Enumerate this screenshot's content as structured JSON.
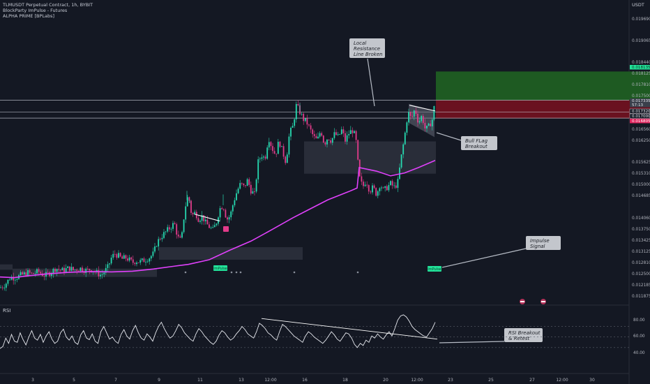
{
  "header": {
    "symbol": "TLMUSDT Perpetual Contract, 1h, BYBIT",
    "indicator_1": "BlockParty ImPulse - Futures",
    "indicator_2": "ALPHA PRIME [BPLabs]",
    "currency": "USDT"
  },
  "rsi_label": "RSI",
  "colors": {
    "background": "#141823",
    "bull_candle": "#26d9b0",
    "bear_candle": "#e23b8a",
    "ma_line": "#e040fb",
    "take_profit_zone": "#1e5a22",
    "stop_zone": "#6a1220",
    "pill_green": "#22e39a",
    "pill_red": "#e0245e",
    "pill_dark": "#3a3f4b"
  },
  "annotations": [
    {
      "id": "resistance",
      "lines": [
        "Local",
        "Resistance",
        "Line Broken"
      ]
    },
    {
      "id": "bullflag",
      "lines": [
        "Bull FLag",
        "Breakout"
      ]
    },
    {
      "id": "impulse",
      "lines": [
        "Impulse",
        "Signal"
      ]
    },
    {
      "id": "rsi",
      "lines": [
        "RSI Breakout",
        "& Retest"
      ]
    }
  ],
  "impulse_label": "ImPulse",
  "rsi_axis_labels": [
    "80.00",
    "60.00",
    "40.00"
  ],
  "chart_data": [
    {
      "type": "candlestick",
      "title": "TLMUSDT Perpetual Contract, 1h, BYBIT",
      "y_tick_labels": [
        "0.019690",
        "0.019065",
        "0.018440",
        "0.018125",
        "0.017810",
        "0.017500",
        "0.016560",
        "0.016250",
        "0.015625",
        "0.015310",
        "0.015000",
        "0.014685",
        "0.014060",
        "0.013750",
        "0.013425",
        "0.013125",
        "0.012810",
        "0.012500",
        "0.012185",
        "0.011875"
      ],
      "price_pills": [
        {
          "label": "0.018135",
          "style": "green"
        },
        {
          "label": "0.017335",
          "style": "dark"
        },
        {
          "label": "57:13",
          "style": "dark"
        },
        {
          "label": "0.017320",
          "style": "outline"
        },
        {
          "label": "0.017000",
          "style": "outline"
        },
        {
          "label": "0.016805",
          "style": "red"
        }
      ],
      "x_tick_labels": [
        "3",
        "5",
        "7",
        "9",
        "11",
        "13",
        "12:00",
        "16",
        "18",
        "20",
        "12:00",
        "23",
        "25",
        "27",
        "12:00",
        "30"
      ],
      "close_path": [
        [
          0,
          0.0121
        ],
        [
          5,
          0.01215
        ],
        [
          10,
          0.01225
        ],
        [
          15,
          0.0124
        ],
        [
          20,
          0.01238
        ],
        [
          25,
          0.0124
        ],
        [
          30,
          0.01245
        ],
        [
          35,
          0.01248
        ],
        [
          40,
          0.01252
        ],
        [
          45,
          0.01248
        ],
        [
          50,
          0.01251
        ],
        [
          55,
          0.01255
        ],
        [
          60,
          0.01248
        ],
        [
          65,
          0.01244
        ],
        [
          70,
          0.0125
        ],
        [
          75,
          0.01256
        ],
        [
          80,
          0.01265
        ],
        [
          85,
          0.0126
        ],
        [
          90,
          0.01258
        ],
        [
          95,
          0.01262
        ],
        [
          100,
          0.01265
        ],
        [
          105,
          0.01259
        ],
        [
          110,
          0.01262
        ],
        [
          115,
          0.01264
        ],
        [
          120,
          0.0126
        ],
        [
          125,
          0.01258
        ],
        [
          130,
          0.01262
        ],
        [
          135,
          0.01256
        ],
        [
          140,
          0.0125
        ],
        [
          145,
          0.01245
        ],
        [
          150,
          0.01255
        ],
        [
          155,
          0.01268
        ],
        [
          160,
          0.01295
        ],
        [
          165,
          0.01305
        ],
        [
          170,
          0.01298
        ],
        [
          175,
          0.0129
        ],
        [
          180,
          0.01294
        ],
        [
          185,
          0.01288
        ],
        [
          190,
          0.0128
        ],
        [
          195,
          0.01285
        ],
        [
          200,
          0.01282
        ],
        [
          205,
          0.01285
        ],
        [
          210,
          0.0129
        ],
        [
          215,
          0.01295
        ],
        [
          220,
          0.01305
        ],
        [
          225,
          0.01335
        ],
        [
          230,
          0.0135
        ],
        [
          235,
          0.0136
        ],
        [
          240,
          0.0137
        ],
        [
          245,
          0.0138
        ],
        [
          250,
          0.0139
        ],
        [
          255,
          0.0135
        ],
        [
          260,
          0.0134
        ],
        [
          265,
          0.0143
        ],
        [
          270,
          0.0147
        ],
        [
          275,
          0.0141
        ],
        [
          280,
          0.0142
        ],
        [
          285,
          0.014
        ],
        [
          290,
          0.0141
        ],
        [
          295,
          0.0139
        ],
        [
          300,
          0.0138
        ],
        [
          305,
          0.0137
        ],
        [
          310,
          0.0139
        ],
        [
          315,
          0.0143
        ],
        [
          320,
          0.0144
        ],
        [
          325,
          0.014
        ],
        [
          330,
          0.0141
        ],
        [
          335,
          0.0145
        ],
        [
          340,
          0.0148
        ],
        [
          345,
          0.015
        ],
        [
          350,
          0.0149
        ],
        [
          355,
          0.0151
        ],
        [
          360,
          0.0148
        ],
        [
          365,
          0.0147
        ],
        [
          370,
          0.0156
        ],
        [
          375,
          0.0158
        ],
        [
          380,
          0.0157
        ],
        [
          385,
          0.0163
        ],
        [
          390,
          0.016
        ],
        [
          395,
          0.0158
        ],
        [
          400,
          0.0162
        ],
        [
          405,
          0.0159
        ],
        [
          410,
          0.0156
        ],
        [
          415,
          0.0164
        ],
        [
          420,
          0.0166
        ],
        [
          425,
          0.0172
        ],
        [
          430,
          0.017
        ],
        [
          435,
          0.0168
        ],
        [
          440,
          0.0167
        ],
        [
          445,
          0.0165
        ],
        [
          450,
          0.0163
        ],
        [
          455,
          0.0162
        ],
        [
          460,
          0.0165
        ],
        [
          465,
          0.0161
        ],
        [
          470,
          0.0163
        ],
        [
          475,
          0.0162
        ],
        [
          480,
          0.0164
        ],
        [
          485,
          0.0163
        ],
        [
          490,
          0.0165
        ],
        [
          495,
          0.0162
        ],
        [
          500,
          0.0164
        ],
        [
          505,
          0.0165
        ],
        [
          510,
          0.0163
        ],
        [
          515,
          0.0152
        ],
        [
          520,
          0.0149
        ],
        [
          525,
          0.0151
        ],
        [
          530,
          0.0148
        ],
        [
          535,
          0.0149
        ],
        [
          540,
          0.0147
        ],
        [
          545,
          0.015
        ],
        [
          550,
          0.0148
        ],
        [
          555,
          0.0149
        ],
        [
          560,
          0.015
        ],
        [
          565,
          0.0149
        ],
        [
          570,
          0.015
        ],
        [
          575,
          0.0157
        ],
        [
          580,
          0.0163
        ],
        [
          585,
          0.017
        ],
        [
          590,
          0.0168
        ],
        [
          595,
          0.0171
        ],
        [
          600,
          0.0167
        ],
        [
          605,
          0.0169
        ],
        [
          610,
          0.0165
        ],
        [
          615,
          0.0166
        ],
        [
          620,
          0.0168
        ],
        [
          624,
          0.01733
        ]
      ],
      "moving_average": [
        [
          0,
          0.0124
        ],
        [
          20,
          0.01238
        ],
        [
          40,
          0.01243
        ],
        [
          70,
          0.01249
        ],
        [
          100,
          0.01253
        ],
        [
          130,
          0.01255
        ],
        [
          160,
          0.01254
        ],
        [
          190,
          0.01256
        ],
        [
          220,
          0.01262
        ],
        [
          250,
          0.0127
        ],
        [
          270,
          0.01275
        ],
        [
          300,
          0.01288
        ],
        [
          330,
          0.01315
        ],
        [
          360,
          0.0134
        ],
        [
          390,
          0.01372
        ],
        [
          420,
          0.01405
        ],
        [
          440,
          0.01425
        ],
        [
          470,
          0.01455
        ],
        [
          500,
          0.01478
        ],
        [
          512,
          0.01488
        ],
        [
          515,
          0.01545
        ],
        [
          540,
          0.01535
        ],
        [
          560,
          0.01522
        ],
        [
          580,
          0.0153
        ],
        [
          600,
          0.01545
        ],
        [
          624,
          0.01565
        ]
      ],
      "zones": [
        {
          "kind": "base",
          "x0": 0,
          "x1": 18,
          "top": 0.01275,
          "bottom": 0.0126
        },
        {
          "kind": "demand",
          "x0": 18,
          "x1": 225,
          "top": 0.01263,
          "bottom": 0.0124
        },
        {
          "kind": "demand",
          "x0": 228,
          "x1": 434,
          "top": 0.01323,
          "bottom": 0.01288
        },
        {
          "kind": "demand",
          "x0": 436,
          "x1": 625,
          "top": 0.01618,
          "bottom": 0.01528
        }
      ],
      "take_profit": {
        "x0": 625,
        "x1": 932,
        "top": 0.01813,
        "bottom": 0.01733
      },
      "stop_loss": {
        "x0": 625,
        "x1": 932,
        "top": 0.01733,
        "bottom": 0.01682
      },
      "horizontal_lines": [
        0.01733,
        0.017,
        0.01683
      ],
      "trend_lines": [
        {
          "x0": 279,
          "y0": 0.01415,
          "x1": 315,
          "y1": 0.01396
        },
        {
          "x0": 587,
          "y0": 0.01719,
          "x1": 624,
          "y1": 0.01703
        }
      ],
      "flag": [
        [
          586,
          0.01723
        ],
        [
          623,
          0.01703
        ],
        [
          623,
          0.0163
        ],
        [
          586,
          0.0167
        ]
      ]
    },
    {
      "type": "line",
      "title": "RSI",
      "y_tick_labels": [
        "80.00",
        "60.00",
        "40.00"
      ],
      "values": [
        28,
        32,
        48,
        38,
        55,
        42,
        40,
        58,
        45,
        35,
        50,
        62,
        48,
        44,
        55,
        40,
        52,
        60,
        46,
        38,
        42,
        58,
        65,
        50,
        44,
        52,
        40,
        36,
        54,
        62,
        48,
        45,
        56,
        42,
        38,
        60,
        70,
        58,
        46,
        50,
        42,
        38,
        55,
        64,
        52,
        46,
        62,
        72,
        58,
        48,
        44,
        56,
        50,
        42,
        58,
        70,
        78,
        66,
        56,
        48,
        52,
        62,
        74,
        68,
        58,
        52,
        46,
        42,
        56,
        66,
        60,
        52,
        46,
        40,
        36,
        42,
        54,
        62,
        58,
        50,
        44,
        48,
        56,
        62,
        70,
        64,
        56,
        52,
        48,
        60,
        76,
        72,
        66,
        58,
        54,
        48,
        44,
        60,
        74,
        70,
        64,
        58,
        52,
        48,
        44,
        40,
        52,
        60,
        56,
        50,
        46,
        42,
        38,
        44,
        52,
        60,
        54,
        46,
        42,
        50,
        58,
        56,
        48,
        36,
        30,
        38,
        34,
        44,
        40,
        52,
        48,
        56,
        50,
        46,
        54,
        60,
        52,
        66,
        82,
        90,
        92,
        88,
        80,
        70,
        64,
        60,
        56,
        52,
        50,
        58,
        66,
        78
      ],
      "trend_line": [
        [
          375,
          85
        ],
        [
          627,
          46
        ]
      ]
    }
  ]
}
